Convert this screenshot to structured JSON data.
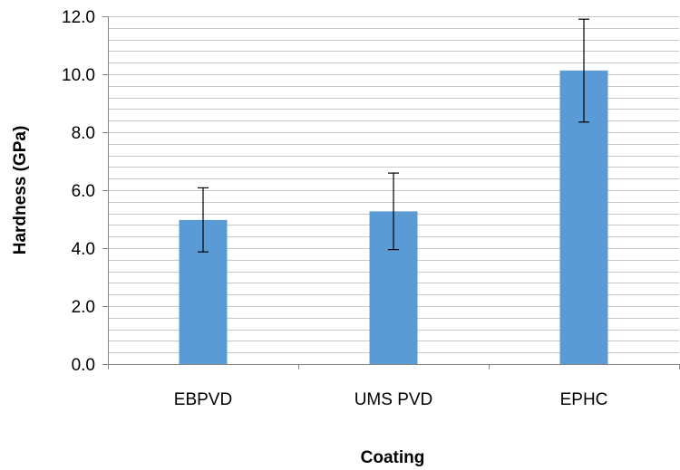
{
  "chart_data": {
    "type": "bar",
    "title": "",
    "xlabel": "Coating",
    "ylabel": "Hardness (GPa)",
    "categories": [
      "EBPVD",
      "UMS PVD",
      "EPHC"
    ],
    "series": [
      {
        "values": [
          4.97,
          5.27,
          10.13
        ],
        "error_low": [
          3.87,
          3.95,
          8.35
        ],
        "error_high": [
          6.08,
          6.59,
          11.9
        ],
        "color": "#5B9BD5"
      }
    ],
    "ylim": [
      0,
      12
    ],
    "yticks": [
      "0.0",
      "2.0",
      "4.0",
      "6.0",
      "8.0",
      "10.0",
      "12.0"
    ],
    "major_step": 2,
    "minor_step": 0.4,
    "grid": true,
    "legend": "none",
    "colors": {
      "bar": "#5B9BD5",
      "grid": "#C8C8C8",
      "axis": "#868686",
      "error_bar": "#000000"
    }
  }
}
